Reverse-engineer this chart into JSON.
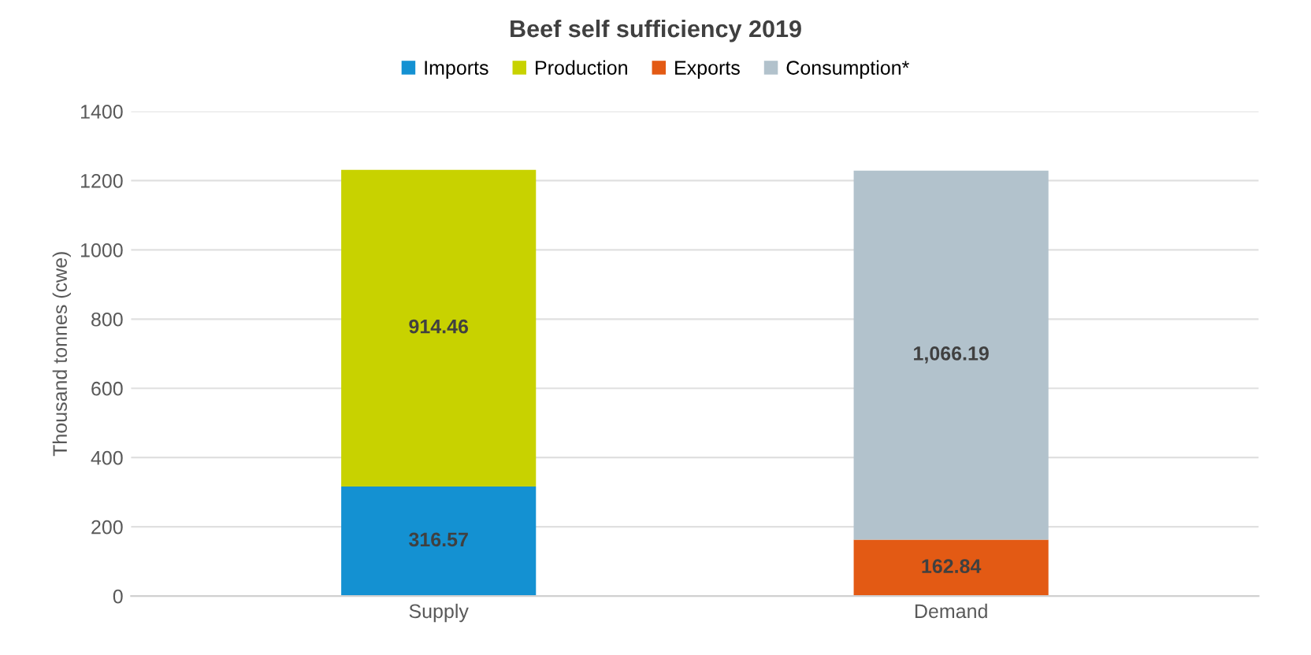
{
  "chart_data": {
    "type": "bar",
    "title": "Beef self sufficiency 2019",
    "ylabel": "Thousand tonnes (cwe)",
    "categories": [
      "Supply",
      "Demand"
    ],
    "stacked": true,
    "series": [
      {
        "name": "Imports",
        "color": "#1491d2",
        "values": [
          316.57,
          null
        ],
        "value_labels": [
          "316.57",
          null
        ]
      },
      {
        "name": "Production",
        "color": "#c8d200",
        "values": [
          914.46,
          null
        ],
        "value_labels": [
          "914.46",
          null
        ]
      },
      {
        "name": "Exports",
        "color": "#e35a14",
        "values": [
          null,
          162.84
        ],
        "value_labels": [
          null,
          "162.84"
        ]
      },
      {
        "name": "Consumption*",
        "color": "#b2c2cc",
        "values": [
          null,
          1066.19
        ],
        "value_labels": [
          null,
          "1,066.19"
        ]
      }
    ],
    "ylim": [
      0,
      1400
    ],
    "yticks": [
      0,
      200,
      400,
      600,
      800,
      1000,
      1200,
      1400
    ],
    "grid": "y",
    "legend": "top"
  }
}
